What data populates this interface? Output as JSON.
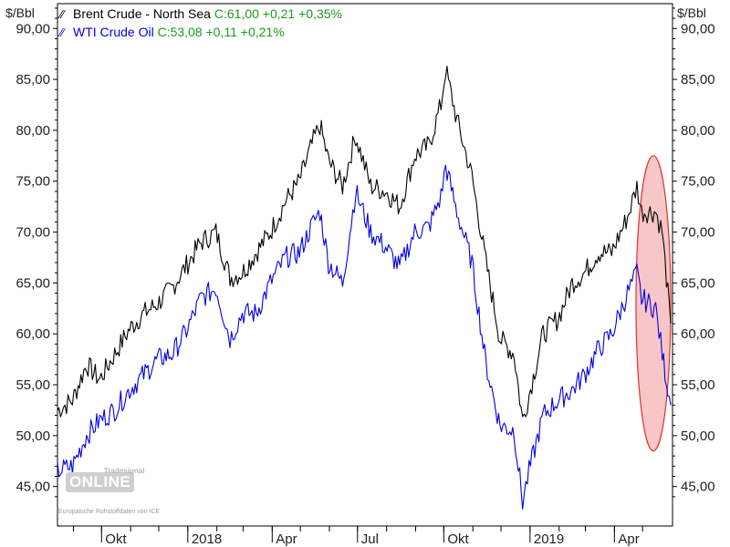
{
  "legend": {
    "brent": {
      "name": "Brent Crude - North Sea",
      "quote": "C:61,00 +0,21 +0,35%"
    },
    "wti": {
      "name": "WTI Crude Oil",
      "quote": "C:53,08 +0,11 +0,21%"
    }
  },
  "watermark": {
    "brand_word": "ONLINE",
    "brand_small": "Tradesignal",
    "source_note": "Europäische Rohstoffdaten von ICE"
  },
  "colors": {
    "brent": "#000000",
    "wti": "#0000e6",
    "quote": "#1a9c1a",
    "highlight_fill": "#f7c6c6",
    "highlight_stroke": "#e03030"
  },
  "chart_data": {
    "type": "line",
    "ylabel_left": "$/Bbl",
    "ylabel_right": "$/Bbl",
    "ylim": [
      43,
      93
    ],
    "yticks": [
      "45,00",
      "50,00",
      "55,00",
      "60,00",
      "65,00",
      "70,00",
      "75,00",
      "80,00",
      "85,00",
      "90,00"
    ],
    "xticks": [
      "Okt",
      "2018",
      "Apr",
      "Jul",
      "Okt",
      "2019",
      "Apr"
    ],
    "x_range": [
      "2017-08-15",
      "2019-05-31"
    ],
    "grid": false,
    "legend_position": "top-left",
    "series": [
      {
        "name": "Brent Crude - North Sea",
        "x": [
          "2017-08-15",
          "2017-08-31",
          "2017-09-15",
          "2017-09-29",
          "2017-10-15",
          "2017-10-31",
          "2017-11-15",
          "2017-11-30",
          "2017-12-15",
          "2017-12-29",
          "2018-01-15",
          "2018-01-31",
          "2018-02-15",
          "2018-02-28",
          "2018-03-15",
          "2018-03-30",
          "2018-04-15",
          "2018-04-30",
          "2018-05-15",
          "2018-05-22",
          "2018-05-31",
          "2018-06-15",
          "2018-06-29",
          "2018-07-15",
          "2018-07-31",
          "2018-08-15",
          "2018-08-31",
          "2018-09-15",
          "2018-09-28",
          "2018-10-03",
          "2018-10-15",
          "2018-10-31",
          "2018-11-15",
          "2018-11-30",
          "2018-12-15",
          "2018-12-24",
          "2018-12-31",
          "2019-01-15",
          "2019-01-31",
          "2019-02-15",
          "2019-02-28",
          "2019-03-15",
          "2019-03-29",
          "2019-04-15",
          "2019-04-25",
          "2019-04-30",
          "2019-05-15",
          "2019-05-22",
          "2019-05-31"
        ],
        "values": [
          52.5,
          53.5,
          57.0,
          55.5,
          58.0,
          60.5,
          62.0,
          63.0,
          64.5,
          66.5,
          69.0,
          70.0,
          65.5,
          66.0,
          68.0,
          70.0,
          73.0,
          75.0,
          79.0,
          80.5,
          77.0,
          74.5,
          79.5,
          74.5,
          74.0,
          72.5,
          77.5,
          78.5,
          82.5,
          86.0,
          81.0,
          75.5,
          67.0,
          59.5,
          58.0,
          51.5,
          54.0,
          60.0,
          61.5,
          65.0,
          66.0,
          68.0,
          68.0,
          71.5,
          74.5,
          72.0,
          72.0,
          70.0,
          61.0
        ]
      },
      {
        "name": "WTI Crude Oil",
        "x": [
          "2017-08-15",
          "2017-08-31",
          "2017-09-15",
          "2017-09-29",
          "2017-10-15",
          "2017-10-31",
          "2017-11-15",
          "2017-11-30",
          "2017-12-15",
          "2017-12-29",
          "2018-01-15",
          "2018-01-31",
          "2018-02-15",
          "2018-02-28",
          "2018-03-15",
          "2018-03-30",
          "2018-04-15",
          "2018-04-30",
          "2018-05-15",
          "2018-05-22",
          "2018-05-31",
          "2018-06-15",
          "2018-06-29",
          "2018-07-15",
          "2018-07-31",
          "2018-08-15",
          "2018-08-31",
          "2018-09-15",
          "2018-09-28",
          "2018-10-03",
          "2018-10-15",
          "2018-10-31",
          "2018-11-15",
          "2018-11-30",
          "2018-12-15",
          "2018-12-24",
          "2018-12-31",
          "2019-01-15",
          "2019-01-31",
          "2019-02-15",
          "2019-02-28",
          "2019-03-15",
          "2019-03-29",
          "2019-04-15",
          "2019-04-25",
          "2019-04-30",
          "2019-05-15",
          "2019-05-22",
          "2019-05-31"
        ],
        "values": [
          46.5,
          47.0,
          50.0,
          51.5,
          52.5,
          54.5,
          56.0,
          57.5,
          58.0,
          60.0,
          63.5,
          64.5,
          59.5,
          62.0,
          62.0,
          65.0,
          67.5,
          68.0,
          71.0,
          72.0,
          67.0,
          65.0,
          74.0,
          70.0,
          68.5,
          66.5,
          70.0,
          70.5,
          73.5,
          76.5,
          72.0,
          67.0,
          57.0,
          51.0,
          50.5,
          43.5,
          46.5,
          52.0,
          53.5,
          54.5,
          56.0,
          58.5,
          60.0,
          64.0,
          66.0,
          63.5,
          62.5,
          58.0,
          53.0
        ]
      }
    ],
    "highlight": {
      "shape": "ellipse",
      "x_range": [
        "2019-04-24",
        "2019-05-31"
      ],
      "y_range": [
        48.5,
        77.5
      ]
    }
  }
}
